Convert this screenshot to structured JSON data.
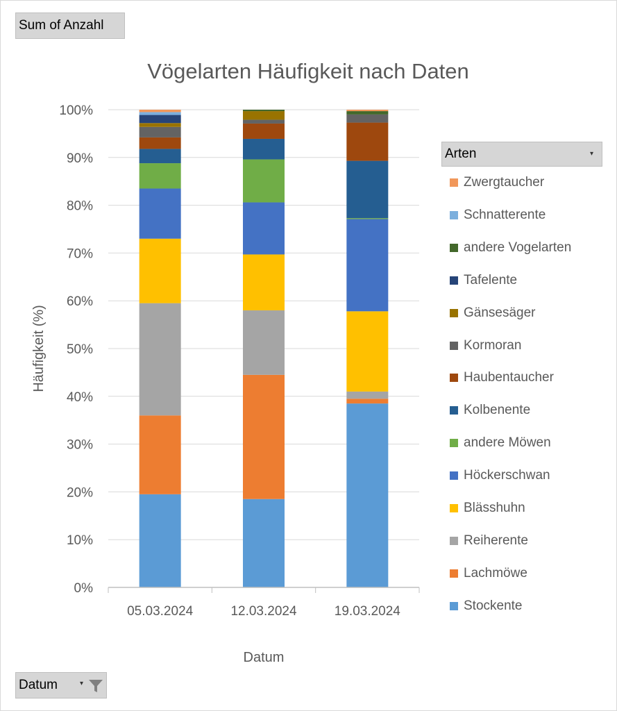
{
  "pivot": {
    "value_field": "Sum of Anzahl",
    "axis_field": "Datum",
    "legend_field": "Arten"
  },
  "chart_data": {
    "type": "bar",
    "stacked": "percent",
    "title": "Vögelarten Häufigkeit nach Daten",
    "xlabel": "Datum",
    "ylabel": "Häufigkeit (%)",
    "ylim": [
      0,
      100
    ],
    "yticks": [
      "0%",
      "10%",
      "20%",
      "30%",
      "40%",
      "50%",
      "60%",
      "70%",
      "80%",
      "90%",
      "100%"
    ],
    "grid": true,
    "legend_position": "right",
    "categories": [
      "05.03.2024",
      "12.03.2024",
      "19.03.2024"
    ],
    "series": [
      {
        "name": "Stockente",
        "color": "#5b9bd5",
        "values": [
          19.5,
          18.5,
          38.5
        ]
      },
      {
        "name": "Lachmöwe",
        "color": "#ed7d31",
        "values": [
          16.5,
          26.0,
          1.0
        ]
      },
      {
        "name": "Reiherente",
        "color": "#a5a5a5",
        "values": [
          23.5,
          13.5,
          1.5
        ]
      },
      {
        "name": "Blässhuhn",
        "color": "#ffc000",
        "values": [
          13.5,
          11.7,
          16.8
        ]
      },
      {
        "name": "Höckerschwan",
        "color": "#4472c4",
        "values": [
          10.5,
          10.9,
          19.3
        ]
      },
      {
        "name": "andere Möwen",
        "color": "#70ad47",
        "values": [
          5.3,
          9.0,
          0.2
        ]
      },
      {
        "name": "Kolbenente",
        "color": "#255e91",
        "values": [
          3.0,
          4.3,
          12.0
        ]
      },
      {
        "name": "Haubentaucher",
        "color": "#9e480e",
        "values": [
          2.4,
          3.2,
          8.0
        ]
      },
      {
        "name": "Kormoran",
        "color": "#636363",
        "values": [
          2.2,
          0.8,
          1.7
        ]
      },
      {
        "name": "Gänsesäger",
        "color": "#997300",
        "values": [
          0.8,
          1.8,
          0.0
        ]
      },
      {
        "name": "Tafelente",
        "color": "#264478",
        "values": [
          1.7,
          0.0,
          0.0
        ]
      },
      {
        "name": "andere Vogelarten",
        "color": "#43682b",
        "values": [
          0.0,
          0.3,
          0.7
        ]
      },
      {
        "name": "Schnatterente",
        "color": "#7cafdd",
        "values": [
          0.6,
          0.0,
          0.0
        ]
      },
      {
        "name": "Zwergtaucher",
        "color": "#f1975a",
        "values": [
          0.5,
          0.0,
          0.3
        ]
      }
    ]
  }
}
